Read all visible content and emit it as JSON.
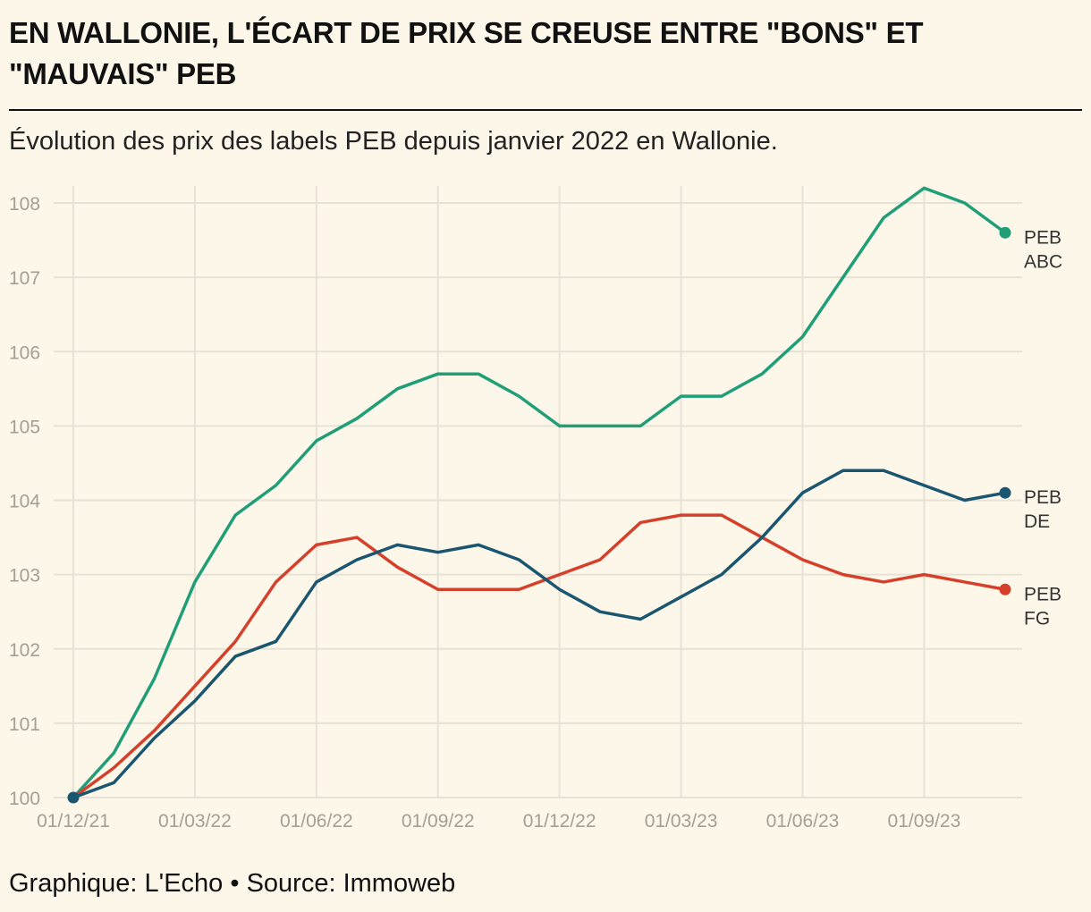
{
  "title": "EN WALLONIE, L'ÉCART DE PRIX SE CREUSE ENTRE \"BONS\" ET \"MAUVAIS\" PEB",
  "subtitle": "Évolution des prix des labels PEB depuis janvier 2022 en Wallonie.",
  "footer": "Graphique: L'Echo • Source: Immoweb",
  "chart_data": {
    "type": "line",
    "x": [
      "01/12/21",
      "01/01/22",
      "01/02/22",
      "01/03/22",
      "01/04/22",
      "01/05/22",
      "01/06/22",
      "01/07/22",
      "01/08/22",
      "01/09/22",
      "01/10/22",
      "01/11/22",
      "01/12/22",
      "01/01/23",
      "01/02/23",
      "01/03/23",
      "01/04/23",
      "01/05/23",
      "01/06/23",
      "01/07/23",
      "01/08/23",
      "01/09/23",
      "01/10/23",
      "01/11/23"
    ],
    "x_ticks": [
      "01/12/21",
      "01/03/22",
      "01/06/22",
      "01/09/22",
      "01/12/22",
      "01/03/23",
      "01/06/23",
      "01/09/23"
    ],
    "y_ticks": [
      100,
      101,
      102,
      103,
      104,
      105,
      106,
      107,
      108
    ],
    "ylim": [
      100,
      108
    ],
    "grid": true,
    "legend": "end-of-line labels, right",
    "series": [
      {
        "name": "PEB ABC",
        "label_lines": [
          "PEB",
          "ABC"
        ],
        "color": "#1f9e77",
        "values": [
          100,
          100.6,
          101.6,
          102.9,
          103.8,
          104.2,
          104.8,
          105.1,
          105.5,
          105.7,
          105.7,
          105.4,
          105.0,
          105.0,
          105.0,
          105.4,
          105.4,
          105.7,
          106.2,
          107.0,
          107.8,
          108.2,
          108.0,
          107.6
        ]
      },
      {
        "name": "PEB FG",
        "label_lines": [
          "PEB",
          "FG"
        ],
        "color": "#d5402b",
        "values": [
          100,
          100.4,
          100.9,
          101.5,
          102.1,
          102.9,
          103.4,
          103.5,
          103.1,
          102.8,
          102.8,
          102.8,
          103.0,
          103.2,
          103.7,
          103.8,
          103.8,
          103.5,
          103.2,
          103.0,
          102.9,
          103.0,
          102.9,
          102.8
        ]
      },
      {
        "name": "PEB DE",
        "label_lines": [
          "PEB",
          "DE"
        ],
        "color": "#1a5670",
        "values": [
          100,
          100.2,
          100.8,
          101.3,
          101.9,
          102.1,
          102.9,
          103.2,
          103.4,
          103.3,
          103.4,
          103.2,
          102.8,
          102.5,
          102.4,
          102.7,
          103.0,
          103.5,
          104.1,
          104.4,
          104.4,
          104.2,
          104.0,
          104.1
        ]
      }
    ]
  }
}
